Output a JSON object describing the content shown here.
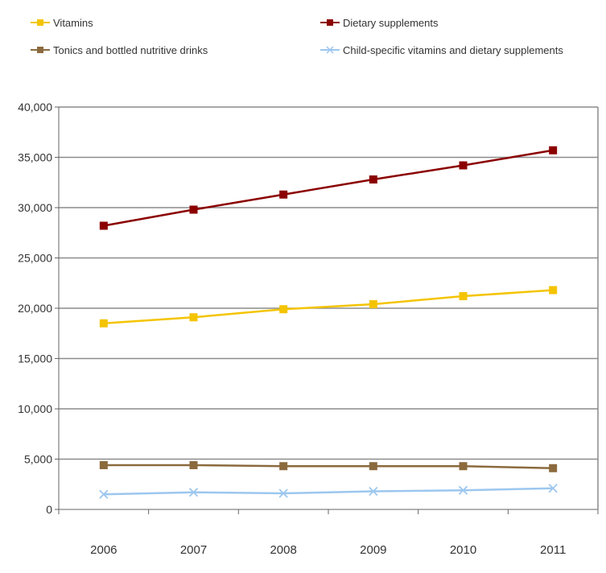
{
  "chart_data": {
    "type": "line",
    "categories": [
      "2006",
      "2007",
      "2008",
      "2009",
      "2010",
      "2011"
    ],
    "ylim": [
      0,
      40000
    ],
    "yticks": [
      0,
      5000,
      10000,
      15000,
      20000,
      25000,
      30000,
      35000,
      40000
    ],
    "ytick_labels": [
      "0",
      "5,000",
      "10,000",
      "15,000",
      "20,000",
      "25,000",
      "30,000",
      "35,000",
      "40,000"
    ],
    "grid": "horizontal",
    "legend_position": "top",
    "series": [
      {
        "name": "Vitamins",
        "color": "#f4c400",
        "marker": "square",
        "values": [
          18500,
          19100,
          19900,
          20400,
          21200,
          21800
        ]
      },
      {
        "name": "Dietary supplements",
        "color": "#8b0000",
        "marker": "square",
        "values": [
          28200,
          29800,
          31300,
          32800,
          34200,
          35700
        ]
      },
      {
        "name": "Tonics and bottled nutritive drinks",
        "color": "#8b6a3e",
        "marker": "square",
        "values": [
          4400,
          4400,
          4300,
          4300,
          4300,
          4100
        ]
      },
      {
        "name": "Child-specific vitamins and dietary supplements",
        "color": "#9cc7ef",
        "marker": "x",
        "values": [
          1500,
          1700,
          1600,
          1800,
          1900,
          2100
        ]
      }
    ]
  }
}
